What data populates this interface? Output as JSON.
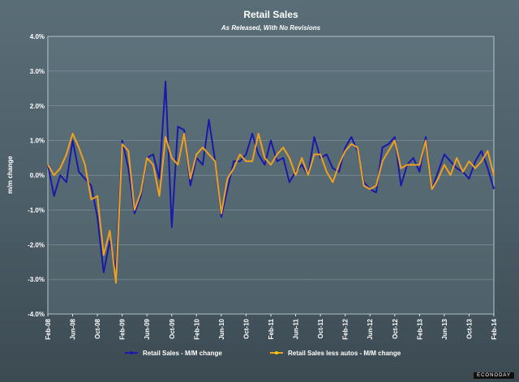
{
  "brand": "ECONODAY",
  "chart_data": {
    "type": "line",
    "title": "Retail Sales",
    "subtitle": "As Released, With No Revisions",
    "xlabel": "",
    "ylabel": "m/m change",
    "ylim": [
      -4.0,
      4.0
    ],
    "yticks": [
      "4.0%",
      "3.0%",
      "2.0%",
      "1.0%",
      "0.0%",
      "-1.0%",
      "-2.0%",
      "-3.0%",
      "-4.0%"
    ],
    "ytick_values": [
      4,
      3,
      2,
      1,
      0,
      -1,
      -2,
      -3,
      -4
    ],
    "xticks": [
      "Feb-08",
      "Jun-08",
      "Oct-08",
      "Feb-09",
      "Jun-09",
      "Oct-09",
      "Feb-10",
      "Jun-10",
      "Oct-10",
      "Feb-11",
      "Jun-11",
      "Oct-11",
      "Feb-12",
      "Jun-12",
      "Oct-12",
      "Feb-13",
      "Jun-13",
      "Oct-13",
      "Feb-14"
    ],
    "xtick_index": [
      0,
      4,
      8,
      12,
      16,
      20,
      24,
      28,
      32,
      36,
      40,
      44,
      48,
      52,
      56,
      60,
      64,
      68,
      72
    ],
    "grid": true,
    "series": [
      {
        "name": "Retail Sales - M/M change",
        "color": "#1a1aa8",
        "values": [
          0.3,
          -0.6,
          0.0,
          -0.2,
          1.0,
          0.1,
          -0.1,
          -0.3,
          -1.2,
          -2.8,
          -1.9,
          -2.7,
          1.0,
          0.2,
          -1.1,
          -0.6,
          0.5,
          0.6,
          -0.1,
          2.7,
          -1.5,
          1.4,
          1.3,
          -0.3,
          0.5,
          0.3,
          1.6,
          0.4,
          -1.2,
          -0.4,
          0.4,
          0.4,
          0.6,
          1.2,
          0.6,
          0.3,
          1.0,
          0.4,
          0.5,
          -0.2,
          0.1,
          0.3,
          0.0,
          1.1,
          0.5,
          0.6,
          0.2,
          0.1,
          0.8,
          1.1,
          0.7,
          -0.2,
          -0.4,
          -0.5,
          0.8,
          0.9,
          1.1,
          -0.3,
          0.3,
          0.5,
          0.1,
          1.1,
          -0.4,
          0.1,
          0.6,
          0.4,
          0.2,
          0.1,
          -0.1,
          0.4,
          0.7,
          0.2,
          -0.4
        ],
        "marker_color": "#1a1aa8"
      },
      {
        "name": "Retail Sales less autos - M/M change",
        "color": "#f0a020",
        "values": [
          0.3,
          0.0,
          0.2,
          0.6,
          1.2,
          0.8,
          0.3,
          -0.7,
          -0.6,
          -2.3,
          -1.6,
          -3.1,
          0.9,
          0.7,
          -1.0,
          -0.5,
          0.5,
          0.3,
          -0.6,
          1.1,
          0.5,
          0.3,
          1.2,
          -0.1,
          0.6,
          0.8,
          0.6,
          0.4,
          -1.1,
          -0.1,
          0.2,
          0.6,
          0.4,
          0.4,
          1.2,
          0.5,
          0.3,
          0.6,
          0.8,
          0.5,
          0.0,
          0.5,
          0.0,
          0.6,
          0.6,
          0.1,
          -0.2,
          0.3,
          0.7,
          0.9,
          0.8,
          -0.3,
          -0.4,
          -0.3,
          0.4,
          0.7,
          1.0,
          0.2,
          0.3,
          0.3,
          0.3,
          1.0,
          -0.4,
          -0.1,
          0.3,
          0.0,
          0.5,
          0.1,
          0.4,
          0.2,
          0.4,
          0.7,
          0.0
        ],
        "marker_color": "#f0d000"
      }
    ],
    "legend_position": "bottom"
  }
}
